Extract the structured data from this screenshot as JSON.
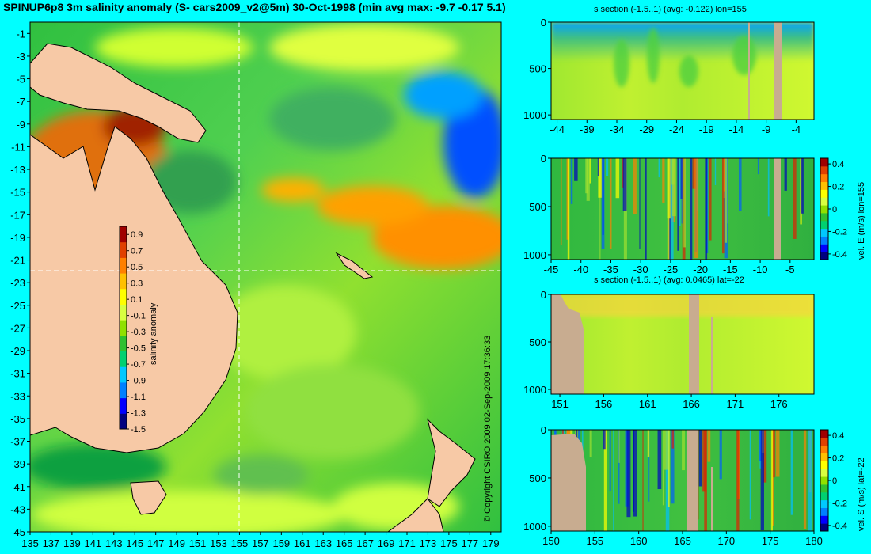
{
  "title": "SPINUP6p8 3m salinity anomaly (S- cars2009_v2@5m) 30-Oct-1998 (min avg max: -9.7 -0.17 5.1)",
  "copyright": "© Copyright CSIRO 2009   02-Sep-2009 17:36:33",
  "colors": {
    "background": "#00ffff",
    "land": "#f7c9a6",
    "section_land": "#c8ac90"
  },
  "colorbar_palette": [
    "#00007f",
    "#0000ff",
    "#0080ff",
    "#00c8ff",
    "#00d070",
    "#30c030",
    "#90e000",
    "#d8ff40",
    "#ffff00",
    "#ffc000",
    "#ff8000",
    "#e04000",
    "#a00000"
  ],
  "map": {
    "type": "heatmap",
    "x_ticks": [
      "135",
      "137",
      "139",
      "141",
      "143",
      "145",
      "147",
      "149",
      "151",
      "153",
      "155",
      "157",
      "159",
      "161",
      "163",
      "165",
      "167",
      "169",
      "171",
      "173",
      "175",
      "177",
      "179"
    ],
    "y_ticks": [
      "-1",
      "-3",
      "-5",
      "-7",
      "-9",
      "-11",
      "-13",
      "-15",
      "-17",
      "-19",
      "-21",
      "-23",
      "-25",
      "-27",
      "-29",
      "-31",
      "-33",
      "-35",
      "-37",
      "-39",
      "-41",
      "-43",
      "-45"
    ],
    "xlim": [
      135,
      180
    ],
    "ylim": [
      -45,
      0
    ],
    "crosshair": {
      "lon": 155,
      "lat": -22
    },
    "colorbar": {
      "label": "salinity anomaly",
      "ticks": [
        "0.9",
        "0.7",
        "0.5",
        "0.3",
        "0.1",
        "-0.1",
        "-0.3",
        "-0.5",
        "-0.7",
        "-0.9",
        "-1.1",
        "-1.3",
        "-1.5"
      ],
      "range": [
        -1.5,
        1.0
      ]
    }
  },
  "chart_data": [
    {
      "type": "heatmap",
      "title": "s section (-1.5..1) (avg: -0.122) lon=155",
      "x_ticks": [
        "-44",
        "-39",
        "-34",
        "-29",
        "-24",
        "-19",
        "-14",
        "-9",
        "-4"
      ],
      "y_ticks": [
        "0",
        "500",
        "1000"
      ],
      "xlim": [
        -45,
        -1
      ],
      "ylim": [
        1050,
        0
      ],
      "colorbar": null
    },
    {
      "type": "heatmap",
      "title": "",
      "x_ticks": [
        "-45",
        "-40",
        "-35",
        "-30",
        "-25",
        "-20",
        "-15",
        "-10",
        "-5"
      ],
      "y_ticks": [
        "0",
        "500",
        "1000"
      ],
      "xlim": [
        -45,
        -1
      ],
      "ylim": [
        1050,
        0
      ],
      "colorbar": {
        "label": "vel. E (m/s) lon=155",
        "ticks": [
          "0.4",
          "0.2",
          "0",
          "-0.2",
          "-0.4"
        ],
        "range": [
          -0.45,
          0.45
        ]
      }
    },
    {
      "type": "heatmap",
      "title": "s section (-1.5..1) (avg: 0.0465) lat=-22",
      "x_ticks": [
        "151",
        "156",
        "161",
        "166",
        "171",
        "176"
      ],
      "y_ticks": [
        "0",
        "500",
        "1000"
      ],
      "xlim": [
        150,
        180
      ],
      "ylim": [
        1050,
        0
      ],
      "colorbar": null
    },
    {
      "type": "heatmap",
      "title": "",
      "x_ticks": [
        "150",
        "155",
        "160",
        "165",
        "170",
        "175",
        "180"
      ],
      "y_ticks": [
        "0",
        "500",
        "1000"
      ],
      "xlim": [
        150,
        180
      ],
      "ylim": [
        1050,
        0
      ],
      "colorbar": {
        "label": "vel. S (m/s) lat=-22",
        "ticks": [
          "0.4",
          "0.2",
          "0",
          "-0.2",
          "-0.4"
        ],
        "range": [
          -0.45,
          0.45
        ]
      }
    }
  ]
}
